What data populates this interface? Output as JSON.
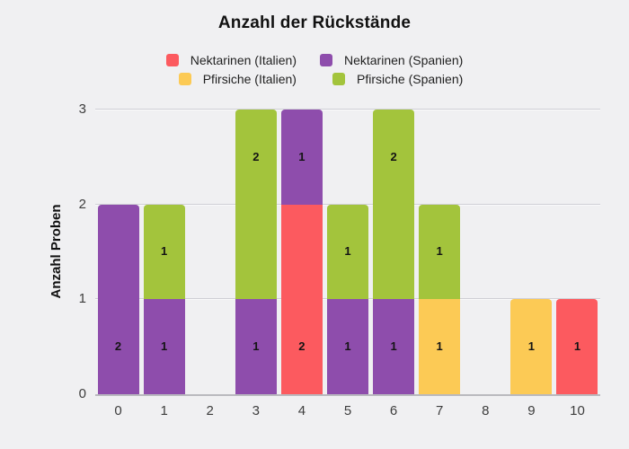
{
  "chart_data": {
    "type": "bar",
    "stacked": true,
    "title": "Anzahl der Rückstände",
    "xlabel": "",
    "ylabel": "Anzahl Proben",
    "categories": [
      "0",
      "1",
      "2",
      "3",
      "4",
      "5",
      "6",
      "7",
      "8",
      "9",
      "10"
    ],
    "series": [
      {
        "name": "Nektarinen (Italien)",
        "color": "#fc5a5f",
        "values": [
          0,
          0,
          0,
          0,
          2,
          0,
          0,
          0,
          0,
          0,
          1
        ]
      },
      {
        "name": "Pfirsiche (Italien)",
        "color": "#fcca55",
        "values": [
          0,
          0,
          0,
          0,
          0,
          0,
          0,
          1,
          0,
          1,
          0
        ]
      },
      {
        "name": "Nektarinen (Spanien)",
        "color": "#8e4dac",
        "values": [
          2,
          1,
          0,
          1,
          1,
          1,
          1,
          0,
          0,
          0,
          0
        ]
      },
      {
        "name": "Pfirsiche (Spanien)",
        "color": "#a3c43c",
        "values": [
          0,
          1,
          0,
          2,
          0,
          1,
          2,
          1,
          0,
          0,
          0
        ]
      }
    ],
    "stack_totals": [
      2,
      2,
      0,
      3,
      3,
      2,
      3,
      2,
      0,
      1,
      1
    ],
    "segment_value_labels_shown": true,
    "y_ticks": [
      "0",
      "1",
      "2",
      "3"
    ],
    "ylim": [
      0,
      3.1
    ],
    "grid": true,
    "legend_position": "top-center"
  },
  "colors": {
    "background": "#f0f0f2",
    "gridline": "#d2d2d7",
    "axis_line": "#b9b9be",
    "title_text": "#111111",
    "tick_text": "#3d3d3d",
    "bar_label_text": "#141414"
  }
}
